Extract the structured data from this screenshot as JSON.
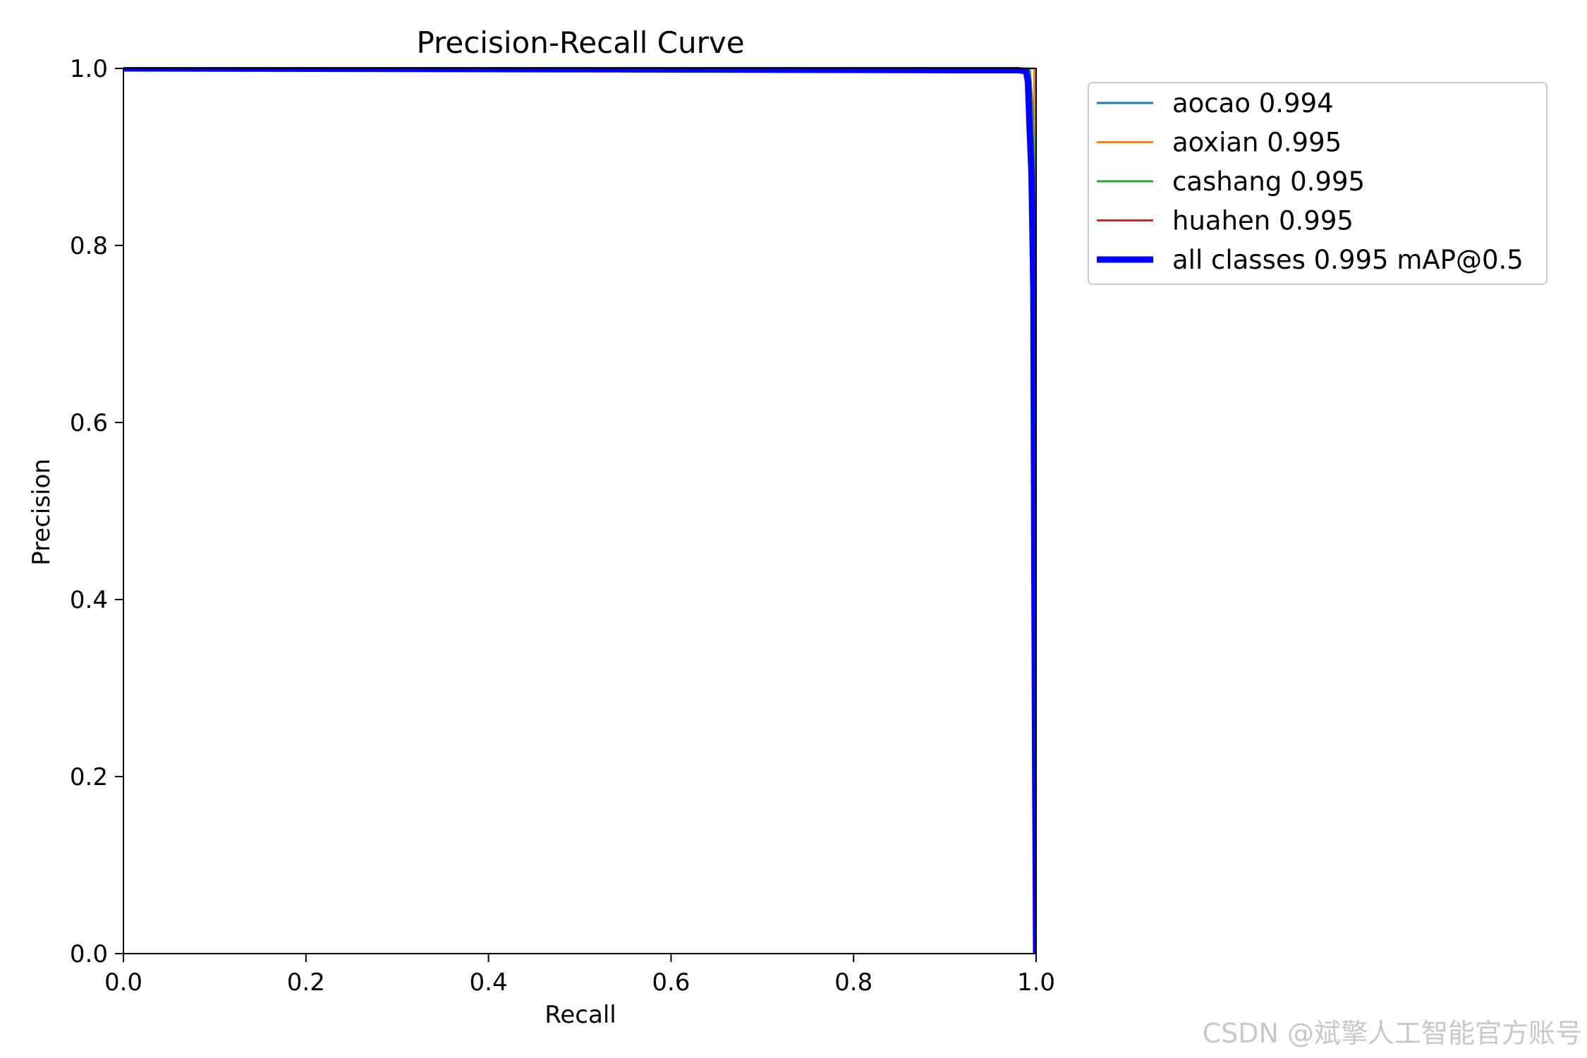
{
  "chart_data": {
    "type": "line",
    "title": "Precision-Recall Curve",
    "xlabel": "Recall",
    "ylabel": "Precision",
    "xlim": [
      0.0,
      1.0
    ],
    "ylim": [
      0.0,
      1.0
    ],
    "xticks": [
      "0.0",
      "0.2",
      "0.4",
      "0.6",
      "0.8",
      "1.0"
    ],
    "yticks": [
      "0.0",
      "0.2",
      "0.4",
      "0.6",
      "0.8",
      "1.0"
    ],
    "grid": false,
    "legend_position": "outside-right-top",
    "series": [
      {
        "name": "aocao 0.994",
        "color": "#1f77b4",
        "line_width": "thin",
        "x": [
          0.0,
          0.5,
          0.95,
          0.988,
          0.993,
          0.995,
          0.997,
          0.999,
          1.0
        ],
        "y": [
          1.0,
          1.0,
          1.0,
          1.0,
          0.99,
          0.95,
          0.7,
          0.3,
          0.0
        ]
      },
      {
        "name": "aoxian 0.995",
        "color": "#ff7f0e",
        "line_width": "thin",
        "x": [
          0.0,
          0.6,
          0.99,
          0.998,
          0.999,
          1.0
        ],
        "y": [
          1.0,
          1.0,
          1.0,
          1.0,
          0.5,
          0.0
        ]
      },
      {
        "name": "cashang 0.995",
        "color": "#2ca02c",
        "line_width": "thin",
        "x": [
          0.0,
          0.6,
          0.98,
          0.993,
          0.996,
          0.998,
          1.0,
          1.0
        ],
        "y": [
          1.0,
          1.0,
          1.0,
          1.0,
          0.96,
          0.9,
          0.85,
          0.0
        ]
      },
      {
        "name": "huahen 0.995",
        "color": "#d62728",
        "line_width": "thin",
        "x": [
          0.0,
          0.6,
          0.985,
          0.992,
          0.994,
          0.996,
          0.998,
          1.0
        ],
        "y": [
          1.0,
          1.0,
          1.0,
          0.99,
          0.9,
          0.6,
          0.2,
          0.0
        ]
      },
      {
        "name": "all classes 0.995 mAP@0.5",
        "color": "#0000ff",
        "line_width": "thick",
        "x": [
          0.0,
          0.54,
          0.92,
          0.98,
          0.989,
          0.991,
          0.993,
          0.995,
          0.997,
          0.998,
          0.999,
          1.0
        ],
        "y": [
          1.0,
          0.999,
          0.998,
          0.998,
          0.997,
          0.985,
          0.93,
          0.88,
          0.75,
          0.45,
          0.2,
          0.0
        ]
      }
    ]
  },
  "watermark": "CSDN @斌擎人工智能官方账号"
}
